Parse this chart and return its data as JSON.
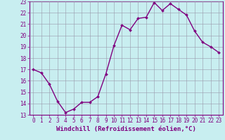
{
  "x": [
    0,
    1,
    2,
    3,
    4,
    5,
    6,
    7,
    8,
    9,
    10,
    11,
    12,
    13,
    14,
    15,
    16,
    17,
    18,
    19,
    20,
    21,
    22,
    23
  ],
  "y": [
    17.0,
    16.7,
    15.7,
    14.2,
    13.2,
    13.5,
    14.1,
    14.1,
    14.6,
    16.6,
    19.1,
    20.9,
    20.5,
    21.5,
    21.6,
    22.9,
    22.2,
    22.8,
    22.3,
    21.8,
    20.4,
    19.4,
    19.0,
    18.5
  ],
  "line_color": "#800080",
  "marker": "D",
  "marker_size": 2,
  "bg_color": "#c8eef0",
  "grid_color": "#9999aa",
  "xlabel": "Windchill (Refroidissement éolien,°C)",
  "ylim": [
    13,
    23
  ],
  "xlim": [
    -0.5,
    23.5
  ],
  "yticks": [
    13,
    14,
    15,
    16,
    17,
    18,
    19,
    20,
    21,
    22,
    23
  ],
  "xticks": [
    0,
    1,
    2,
    3,
    4,
    5,
    6,
    7,
    8,
    9,
    10,
    11,
    12,
    13,
    14,
    15,
    16,
    17,
    18,
    19,
    20,
    21,
    22,
    23
  ],
  "tick_fontsize": 5.5,
  "xlabel_fontsize": 6.5,
  "line_width": 1.0
}
